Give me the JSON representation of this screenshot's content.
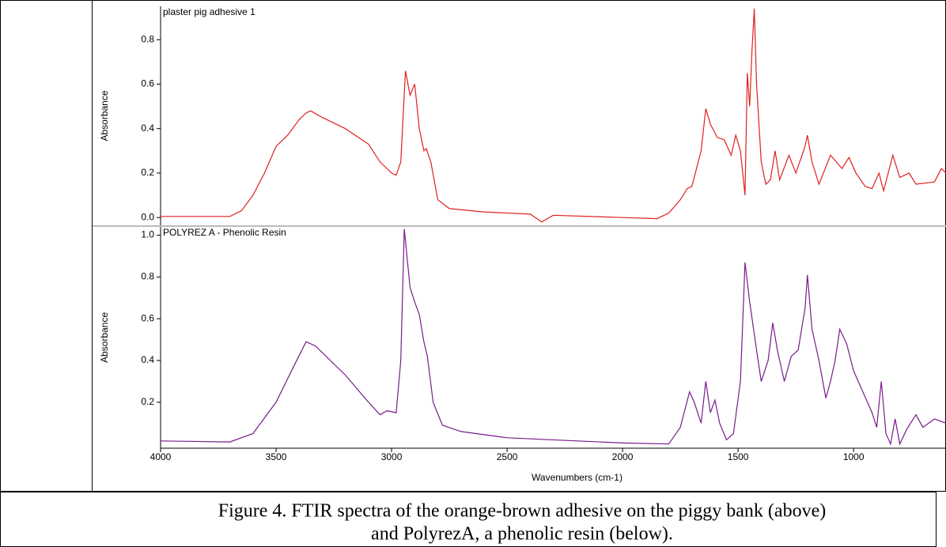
{
  "chart_data": [
    {
      "type": "line",
      "title": "plaster pig adhesive 1",
      "ylabel": "Absorbance",
      "xlim": [
        4000,
        600
      ],
      "ylim": [
        -0.035,
        0.95
      ],
      "yticks": [
        {
          "value": 0,
          "label": "0.0"
        },
        0.2,
        0.4,
        0.6,
        0.8
      ],
      "color": "#e02020",
      "x": [
        4000,
        3700,
        3650,
        3600,
        3550,
        3500,
        3450,
        3400,
        3370,
        3350,
        3300,
        3200,
        3100,
        3050,
        3000,
        2980,
        2960,
        2940,
        2920,
        2900,
        2880,
        2860,
        2850,
        2830,
        2800,
        2750,
        2600,
        2400,
        2350,
        2300,
        2000,
        1850,
        1800,
        1750,
        1720,
        1700,
        1660,
        1640,
        1620,
        1590,
        1560,
        1530,
        1510,
        1490,
        1470,
        1460,
        1450,
        1440,
        1430,
        1420,
        1400,
        1380,
        1360,
        1340,
        1320,
        1280,
        1250,
        1210,
        1200,
        1180,
        1150,
        1100,
        1050,
        1020,
        990,
        950,
        920,
        890,
        870,
        830,
        800,
        760,
        730,
        650,
        620,
        600
      ],
      "values": [
        0.005,
        0.005,
        0.03,
        0.1,
        0.2,
        0.32,
        0.37,
        0.44,
        0.47,
        0.48,
        0.45,
        0.4,
        0.33,
        0.25,
        0.2,
        0.19,
        0.25,
        0.66,
        0.55,
        0.6,
        0.4,
        0.3,
        0.31,
        0.25,
        0.08,
        0.04,
        0.025,
        0.015,
        -0.02,
        0.01,
        0.0,
        -0.005,
        0.02,
        0.08,
        0.13,
        0.14,
        0.3,
        0.49,
        0.42,
        0.36,
        0.35,
        0.28,
        0.37,
        0.3,
        0.1,
        0.65,
        0.5,
        0.75,
        0.94,
        0.6,
        0.25,
        0.15,
        0.17,
        0.3,
        0.17,
        0.28,
        0.2,
        0.32,
        0.37,
        0.25,
        0.15,
        0.28,
        0.22,
        0.27,
        0.2,
        0.14,
        0.13,
        0.2,
        0.12,
        0.28,
        0.18,
        0.2,
        0.15,
        0.16,
        0.22,
        0.2
      ]
    },
    {
      "type": "line",
      "title": "POLYREZ A - Phenolic Resin",
      "ylabel": "Absorbance",
      "xlabel": "Wavenumbers (cm-1)",
      "xlim": [
        4000,
        600
      ],
      "ylim": [
        -0.02,
        1.04
      ],
      "xticks": [
        4000,
        3500,
        3000,
        2500,
        2000,
        1500,
        1000
      ],
      "yticks": [
        0.2,
        0.4,
        0.6,
        0.8,
        {
          "value": 1,
          "label": "1.0"
        }
      ],
      "color": "#7a1a8c",
      "x": [
        4000,
        3700,
        3600,
        3500,
        3420,
        3370,
        3330,
        3200,
        3100,
        3050,
        3020,
        2980,
        2960,
        2945,
        2920,
        2900,
        2880,
        2860,
        2845,
        2820,
        2780,
        2700,
        2500,
        2000,
        1800,
        1750,
        1710,
        1690,
        1660,
        1640,
        1620,
        1600,
        1580,
        1550,
        1520,
        1490,
        1470,
        1450,
        1420,
        1400,
        1370,
        1350,
        1330,
        1300,
        1270,
        1240,
        1210,
        1200,
        1180,
        1150,
        1120,
        1100,
        1080,
        1060,
        1030,
        1000,
        960,
        920,
        900,
        880,
        860,
        840,
        820,
        800,
        770,
        730,
        700,
        650,
        600
      ],
      "values": [
        0.015,
        0.01,
        0.05,
        0.2,
        0.38,
        0.49,
        0.47,
        0.33,
        0.2,
        0.14,
        0.16,
        0.15,
        0.4,
        1.03,
        0.75,
        0.68,
        0.62,
        0.49,
        0.42,
        0.2,
        0.09,
        0.06,
        0.03,
        0.005,
        0.0,
        0.08,
        0.25,
        0.2,
        0.1,
        0.3,
        0.15,
        0.21,
        0.1,
        0.02,
        0.05,
        0.3,
        0.87,
        0.68,
        0.45,
        0.3,
        0.4,
        0.58,
        0.45,
        0.3,
        0.42,
        0.45,
        0.65,
        0.81,
        0.55,
        0.4,
        0.22,
        0.3,
        0.4,
        0.55,
        0.48,
        0.35,
        0.25,
        0.15,
        0.08,
        0.3,
        0.05,
        0.0,
        0.12,
        0.0,
        0.07,
        0.14,
        0.08,
        0.12,
        0.1
      ]
    }
  ],
  "caption": [
    "Figure 4. FTIR spectra of the orange-brown adhesive on the piggy bank (above)",
    "and PolyrezA, a phenolic resin (below)."
  ]
}
